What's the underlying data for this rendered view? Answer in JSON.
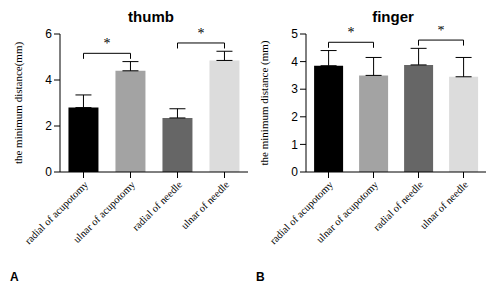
{
  "chart_data": [
    {
      "type": "bar",
      "title": "thumb",
      "panel_label": "A",
      "y_label": "the minimum distance(mm)",
      "categories": [
        "radial of acupotomy",
        "ulnar of acupotomy",
        "radial of needle",
        "ulnar of needle"
      ],
      "values": [
        2.8,
        4.4,
        2.35,
        4.85
      ],
      "errors": [
        0.55,
        0.4,
        0.4,
        0.4
      ],
      "colors": [
        "#000000",
        "#a3a3a3",
        "#666666",
        "#dcdcdc"
      ],
      "ylim": [
        0,
        6
      ],
      "yticks": [
        0,
        2,
        4,
        6
      ],
      "annotations": [
        {
          "between": [
            0,
            1
          ],
          "text": "*"
        },
        {
          "between": [
            2,
            3
          ],
          "text": "*"
        }
      ]
    },
    {
      "type": "bar",
      "title": "finger",
      "panel_label": "B",
      "y_label": "the minimum distance (mm)",
      "categories": [
        "radial of acupotomy",
        "ulnar of acupotomy",
        "radial of needle",
        "ulnar of needle"
      ],
      "values": [
        3.85,
        3.5,
        3.88,
        3.45
      ],
      "errors": [
        0.55,
        0.65,
        0.6,
        0.7
      ],
      "colors": [
        "#000000",
        "#a3a3a3",
        "#666666",
        "#dcdcdc"
      ],
      "ylim": [
        0,
        5
      ],
      "yticks": [
        0,
        1,
        2,
        3,
        4,
        5
      ],
      "annotations": [
        {
          "between": [
            0,
            1
          ],
          "text": "*"
        },
        {
          "between": [
            2,
            3
          ],
          "text": "*"
        }
      ]
    }
  ]
}
